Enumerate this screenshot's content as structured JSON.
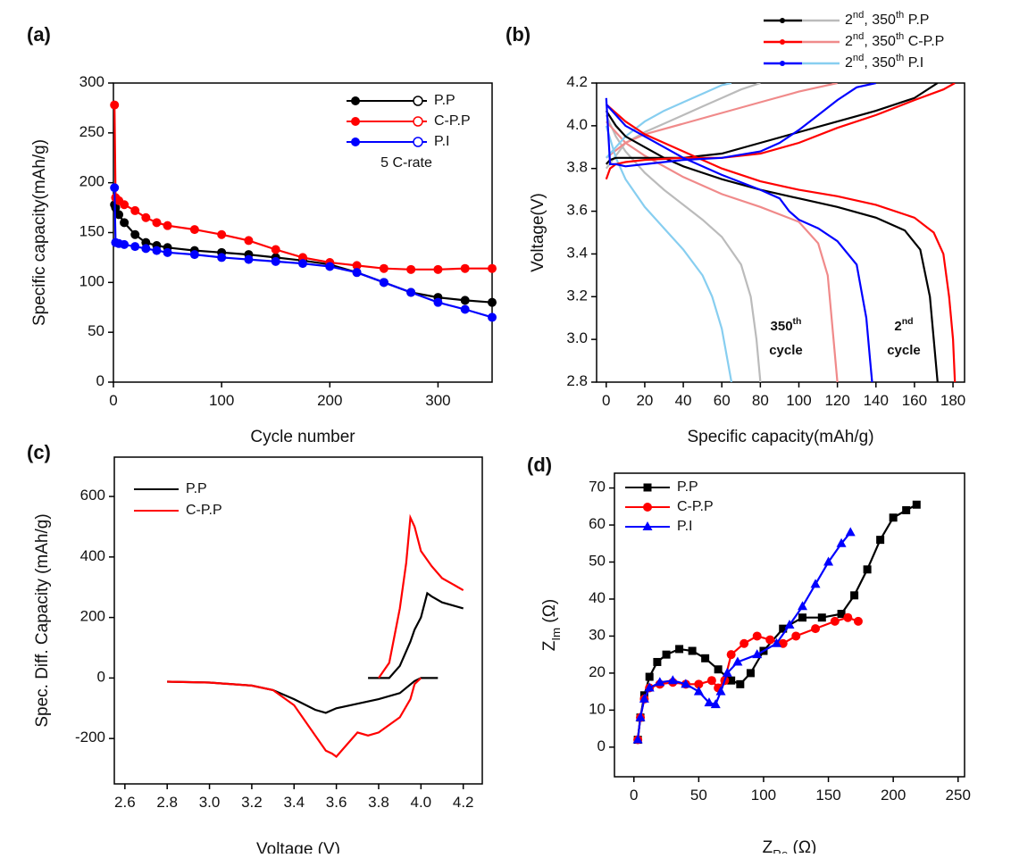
{
  "chart_data": [
    {
      "type": "line",
      "label": "(a)",
      "xlabel": "Cycle number",
      "ylabel": "Specific capacity(mAh/g)",
      "xlim": [
        0,
        350
      ],
      "ylim": [
        0,
        300
      ],
      "xticks": [
        0,
        100,
        200,
        300
      ],
      "yticks": [
        0,
        50,
        100,
        150,
        200,
        250,
        300
      ],
      "marker": "circle",
      "annotations": [
        "5 C-rate"
      ],
      "x": [
        1,
        2,
        5,
        10,
        20,
        30,
        40,
        50,
        75,
        100,
        125,
        150,
        175,
        200,
        225,
        250,
        275,
        300,
        325,
        350
      ],
      "series": [
        {
          "name": "P.P",
          "color": "#000000",
          "values": [
            178,
            175,
            168,
            160,
            148,
            140,
            137,
            135,
            132,
            130,
            128,
            125,
            122,
            118,
            110,
            100,
            90,
            85,
            82,
            80
          ]
        },
        {
          "name": "C-P.P",
          "color": "#ff0000",
          "values": [
            278,
            185,
            182,
            178,
            172,
            165,
            160,
            157,
            153,
            148,
            142,
            133,
            125,
            120,
            117,
            114,
            113,
            113,
            114,
            114
          ]
        },
        {
          "name": "P.I",
          "color": "#0000ff",
          "values": [
            195,
            140,
            139,
            138,
            136,
            134,
            132,
            130,
            128,
            125,
            123,
            121,
            119,
            116,
            110,
            100,
            90,
            80,
            73,
            65
          ]
        }
      ]
    },
    {
      "type": "line",
      "label": "(b)",
      "xlabel": "Specific capacity(mAh/g)",
      "ylabel": "Voltage(V)",
      "xlim": [
        -5,
        186
      ],
      "ylim": [
        2.8,
        4.2
      ],
      "xticks": [
        0,
        20,
        40,
        60,
        80,
        100,
        120,
        140,
        160,
        180
      ],
      "yticks": [
        2.8,
        {
          "value": 3.0,
          "label": "3.0"
        },
        3.2,
        3.4,
        3.6,
        3.8,
        {
          "value": 4.0,
          "label": "4.0"
        },
        4.2
      ],
      "annotations": [
        "350th",
        "cycle",
        "2nd",
        "cycle"
      ],
      "legend": [
        {
          "name": "2nd, 350th P.P",
          "colors": [
            "#000000",
            "#bbbbbb"
          ]
        },
        {
          "name": "2nd, 350th C-P.P",
          "colors": [
            "#ff0000",
            "#f08a8a"
          ]
        },
        {
          "name": "2nd, 350th P.I",
          "colors": [
            "#0000ff",
            "#87cef0"
          ]
        }
      ],
      "series": [
        {
          "color": "#bbbbbb",
          "x": [
            0,
            10,
            20,
            30,
            40,
            50,
            60,
            70,
            80
          ],
          "values": [
            3.8,
            3.92,
            3.97,
            4.01,
            4.05,
            4.09,
            4.13,
            4.17,
            4.2
          ]
        },
        {
          "color": "#bbbbbb",
          "x": [
            0,
            5,
            10,
            20,
            30,
            40,
            50,
            60,
            70,
            75,
            78,
            80
          ],
          "values": [
            4.05,
            3.95,
            3.88,
            3.78,
            3.7,
            3.63,
            3.56,
            3.48,
            3.35,
            3.2,
            3.0,
            2.8
          ]
        },
        {
          "color": "#f08a8a",
          "x": [
            0,
            10,
            20,
            40,
            60,
            80,
            100,
            120
          ],
          "values": [
            3.85,
            3.92,
            3.96,
            4.01,
            4.06,
            4.11,
            4.16,
            4.2
          ]
        },
        {
          "color": "#f08a8a",
          "x": [
            0,
            10,
            20,
            40,
            60,
            80,
            100,
            110,
            115,
            118,
            120
          ],
          "values": [
            4.02,
            3.92,
            3.86,
            3.76,
            3.68,
            3.62,
            3.55,
            3.45,
            3.3,
            3.0,
            2.8
          ]
        },
        {
          "color": "#87cef0",
          "x": [
            0,
            10,
            20,
            30,
            40,
            50,
            60,
            65
          ],
          "values": [
            3.85,
            3.95,
            4.02,
            4.07,
            4.11,
            4.15,
            4.19,
            4.2
          ]
        },
        {
          "color": "#87cef0",
          "x": [
            0,
            5,
            10,
            20,
            30,
            40,
            50,
            55,
            60,
            63,
            65
          ],
          "values": [
            4.0,
            3.85,
            3.75,
            3.62,
            3.52,
            3.42,
            3.3,
            3.2,
            3.05,
            2.9,
            2.8
          ]
        },
        {
          "color": "#000000",
          "x": [
            0,
            2,
            5,
            10,
            20,
            30,
            40,
            50,
            60,
            80,
            100,
            120,
            140,
            160,
            172
          ],
          "values": [
            3.82,
            3.84,
            3.85,
            3.85,
            3.85,
            3.85,
            3.85,
            3.86,
            3.87,
            3.92,
            3.97,
            4.02,
            4.07,
            4.13,
            4.2
          ]
        },
        {
          "color": "#000000",
          "x": [
            0,
            5,
            10,
            20,
            30,
            40,
            50,
            60,
            80,
            100,
            120,
            140,
            155,
            163,
            168,
            170,
            172
          ],
          "values": [
            4.07,
            4.0,
            3.95,
            3.9,
            3.85,
            3.81,
            3.78,
            3.75,
            3.7,
            3.66,
            3.62,
            3.57,
            3.51,
            3.42,
            3.2,
            3.0,
            2.8
          ]
        },
        {
          "color": "#ff0000",
          "x": [
            0,
            2,
            5,
            10,
            20,
            40,
            60,
            80,
            100,
            120,
            140,
            160,
            175,
            181
          ],
          "values": [
            3.75,
            3.8,
            3.82,
            3.83,
            3.84,
            3.85,
            3.85,
            3.87,
            3.92,
            3.99,
            4.05,
            4.12,
            4.17,
            4.2
          ]
        },
        {
          "color": "#ff0000",
          "x": [
            0,
            10,
            20,
            40,
            60,
            80,
            100,
            120,
            140,
            160,
            170,
            175,
            178,
            180,
            181
          ],
          "values": [
            4.1,
            4.02,
            3.96,
            3.88,
            3.8,
            3.74,
            3.7,
            3.67,
            3.63,
            3.57,
            3.5,
            3.4,
            3.2,
            3.0,
            2.8
          ]
        },
        {
          "color": "#0000ff",
          "x": [
            0,
            2,
            5,
            10,
            20,
            40,
            60,
            80,
            90,
            100,
            110,
            120,
            130,
            140
          ],
          "values": [
            4.13,
            3.82,
            3.82,
            3.81,
            3.82,
            3.84,
            3.85,
            3.88,
            3.92,
            3.98,
            4.05,
            4.12,
            4.18,
            4.2
          ]
        },
        {
          "color": "#0000ff",
          "x": [
            0,
            10,
            20,
            40,
            60,
            80,
            90,
            95,
            100,
            110,
            120,
            130,
            135,
            137,
            138
          ],
          "values": [
            4.1,
            4.0,
            3.95,
            3.85,
            3.77,
            3.7,
            3.66,
            3.6,
            3.56,
            3.52,
            3.46,
            3.35,
            3.1,
            2.9,
            2.8
          ]
        }
      ]
    },
    {
      "type": "line",
      "label": "(c)",
      "xlabel": "Voltage (V)",
      "ylabel": "Spec. Diff. Capacity (mAh/g)",
      "xlim": [
        2.55,
        4.29
      ],
      "ylim": [
        -350,
        730
      ],
      "xticks": [
        2.6,
        2.8,
        {
          "value": 3.0,
          "label": "3.0"
        },
        3.2,
        3.4,
        3.6,
        3.8,
        {
          "value": 4.0,
          "label": "4.0"
        },
        4.2
      ],
      "yticks": [
        -200,
        0,
        200,
        400,
        600
      ],
      "series": [
        {
          "name": "P.P",
          "color": "#000000",
          "x": [
            4.08,
            4.0,
            3.97,
            3.9,
            3.8,
            3.7,
            3.6,
            3.55,
            3.5,
            3.4,
            3.3,
            3.2,
            3.0,
            2.8,
            null,
            3.75,
            3.85,
            3.9,
            3.95,
            3.97,
            4.0,
            4.03,
            4.05,
            4.1,
            4.15,
            4.2
          ],
          "values": [
            0,
            0,
            -10,
            -50,
            -70,
            -85,
            -100,
            -115,
            -105,
            -70,
            -40,
            -25,
            -15,
            -12,
            null,
            0,
            0,
            40,
            120,
            160,
            200,
            280,
            270,
            250,
            240,
            230
          ]
        },
        {
          "name": "C-P.P",
          "color": "#ff0000",
          "x": [
            4.0,
            3.97,
            3.95,
            3.9,
            3.8,
            3.75,
            3.7,
            3.65,
            3.6,
            3.58,
            3.55,
            3.5,
            3.4,
            3.3,
            3.2,
            3.0,
            2.8,
            null,
            3.8,
            3.85,
            3.9,
            3.93,
            3.95,
            3.97,
            4.0,
            4.05,
            4.1,
            4.15,
            4.2
          ],
          "values": [
            0,
            -20,
            -70,
            -130,
            -180,
            -190,
            -180,
            -220,
            -260,
            -250,
            -240,
            -190,
            -90,
            -40,
            -25,
            -15,
            -12,
            null,
            0,
            50,
            230,
            380,
            530,
            500,
            420,
            370,
            330,
            310,
            290
          ]
        }
      ]
    },
    {
      "type": "line",
      "label": "(d)",
      "xlabel": "ZRe (Ω)",
      "ylabel": "ZIm (Ω)",
      "xlim": [
        -15,
        255
      ],
      "ylim": [
        -8,
        74
      ],
      "xticks": [
        0,
        50,
        100,
        150,
        200,
        250
      ],
      "yticks": [
        0,
        10,
        20,
        30,
        40,
        50,
        60,
        70
      ],
      "series": [
        {
          "name": "P.P",
          "color": "#000000",
          "marker": "square",
          "x": [
            3,
            5,
            8,
            12,
            18,
            25,
            35,
            45,
            55,
            65,
            75,
            82,
            90,
            100,
            115,
            130,
            145,
            160,
            170,
            180,
            190,
            200,
            210,
            218
          ],
          "values": [
            2,
            8,
            14,
            19,
            23,
            25,
            26.5,
            26,
            24,
            21,
            18,
            17,
            20,
            26,
            32,
            35,
            35,
            36,
            41,
            48,
            56,
            62,
            64,
            65.5
          ]
        },
        {
          "name": "C-P.P",
          "color": "#ff0000",
          "marker": "circle",
          "x": [
            3,
            5,
            8,
            12,
            20,
            30,
            40,
            50,
            60,
            65,
            70,
            75,
            85,
            95,
            105,
            115,
            125,
            140,
            155,
            165,
            173
          ],
          "values": [
            2,
            8,
            13,
            16,
            17,
            17.5,
            17,
            17,
            18,
            16,
            18,
            25,
            28,
            30,
            29,
            28,
            30,
            32,
            34,
            35,
            34
          ]
        },
        {
          "name": "P.I",
          "color": "#0000ff",
          "marker": "triangle",
          "x": [
            3,
            5,
            8,
            12,
            20,
            30,
            40,
            50,
            58,
            63,
            67,
            72,
            80,
            95,
            110,
            120,
            130,
            140,
            150,
            160,
            167
          ],
          "values": [
            2,
            8,
            13,
            16,
            17.5,
            18,
            17,
            15,
            12,
            11.5,
            15,
            20,
            23,
            25,
            28,
            33,
            38,
            44,
            50,
            55,
            58
          ]
        }
      ]
    }
  ]
}
